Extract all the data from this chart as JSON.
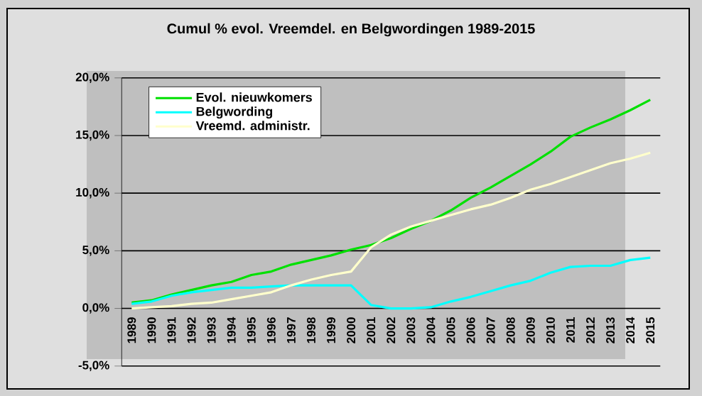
{
  "chart_data": {
    "type": "line",
    "title": "Cumul % evol. Vreemdel. en Belgwordingen 1989-2015",
    "categories": [
      "1989",
      "1990",
      "1991",
      "1992",
      "1993",
      "1994",
      "1995",
      "1996",
      "1997",
      "1998",
      "1999",
      "2000",
      "2001",
      "2002",
      "2003",
      "2004",
      "2005",
      "2006",
      "2007",
      "2008",
      "2009",
      "2010",
      "2011",
      "2012",
      "2013",
      "2014",
      "2015"
    ],
    "series": [
      {
        "name": "Evol. nieuwkomers",
        "color": "#00e000",
        "values": [
          0.5,
          0.7,
          1.2,
          1.6,
          2.0,
          2.3,
          2.9,
          3.2,
          3.8,
          4.2,
          4.6,
          5.1,
          5.5,
          6.1,
          6.9,
          7.6,
          8.5,
          9.6,
          10.5,
          11.5,
          12.5,
          13.6,
          14.9,
          15.7,
          16.4,
          17.2,
          18.1
        ]
      },
      {
        "name": "Belgwording",
        "color": "#00ffff",
        "values": [
          0.4,
          0.6,
          1.1,
          1.4,
          1.6,
          1.8,
          1.8,
          1.9,
          2.0,
          2.0,
          2.0,
          2.0,
          0.3,
          0.0,
          0.0,
          0.1,
          0.6,
          1.0,
          1.5,
          2.0,
          2.4,
          3.1,
          3.6,
          3.7,
          3.7,
          4.2,
          4.4
        ]
      },
      {
        "name": "Vreemd. administr.",
        "color": "#ffffcc",
        "values": [
          0.0,
          0.1,
          0.2,
          0.4,
          0.5,
          0.8,
          1.1,
          1.4,
          2.0,
          2.5,
          2.9,
          3.2,
          5.3,
          6.4,
          7.1,
          7.6,
          8.1,
          8.6,
          9.0,
          9.6,
          10.3,
          10.8,
          11.4,
          12.0,
          12.6,
          13.0,
          13.5
        ]
      }
    ],
    "ylim": [
      -5,
      20
    ],
    "yticks": [
      {
        "value": -5,
        "label": "-5,0%"
      },
      {
        "value": 0,
        "label": "0,0%"
      },
      {
        "value": 5,
        "label": "5,0%"
      },
      {
        "value": 10,
        "label": "10,0%"
      },
      {
        "value": 15,
        "label": "15,0%"
      },
      {
        "value": 20,
        "label": "20,0%"
      }
    ],
    "grid": "y",
    "legend": "top left",
    "marker": "none",
    "line_style": "solid"
  }
}
